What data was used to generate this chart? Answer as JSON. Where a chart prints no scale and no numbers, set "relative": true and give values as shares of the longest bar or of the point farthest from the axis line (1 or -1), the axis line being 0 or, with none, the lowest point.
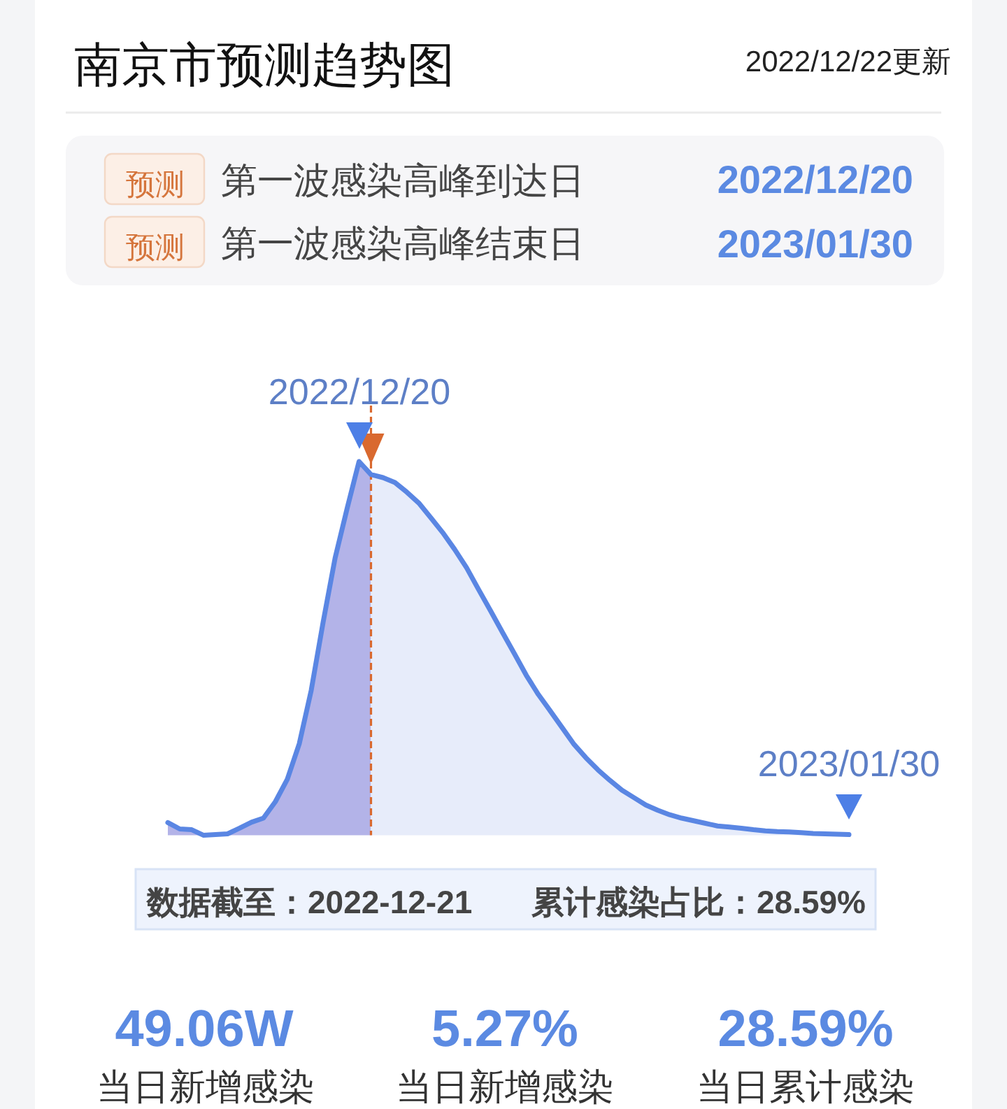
{
  "chart_data": {
    "type": "area",
    "title": "南京市预测趋势图",
    "subtitle": "2022/12/22更新",
    "relative": true,
    "line_style": "solid",
    "categories": [
      null,
      null,
      null,
      null,
      null,
      null,
      null,
      null,
      null,
      null,
      null,
      null,
      null,
      null,
      null,
      null,
      null,
      null,
      null,
      null,
      null,
      null,
      null,
      null,
      null,
      null,
      null,
      null,
      null,
      null,
      null,
      null,
      null,
      null,
      null,
      null,
      null,
      null,
      null,
      null,
      null,
      null,
      null,
      null,
      null,
      null,
      null,
      null,
      null,
      null,
      null,
      null,
      null,
      null,
      null,
      null,
      null,
      null
    ],
    "series": [
      {
        "color": "#b3b3e8",
        "values": [
          0.034,
          0.017,
          0.015,
          0,
          0.002,
          0.004,
          0.019,
          0.035,
          0.046,
          0.09,
          0.15,
          0.245,
          0.388,
          0.571,
          0.742,
          0.874,
          1,
          0.965,
          null,
          null,
          null,
          null,
          null,
          null,
          null,
          null,
          null,
          null,
          null,
          null,
          null,
          null,
          null,
          null,
          null,
          null,
          null,
          null,
          null,
          null,
          null,
          null,
          null,
          null,
          null,
          null,
          null,
          null,
          null,
          null,
          null,
          null,
          null,
          null,
          null,
          null,
          null,
          null
        ]
      },
      {
        "color": "#e7ecfa",
        "values": [
          null,
          null,
          null,
          null,
          null,
          null,
          null,
          null,
          null,
          null,
          null,
          null,
          null,
          null,
          null,
          null,
          null,
          0.965,
          0.957,
          0.944,
          0.918,
          0.889,
          0.85,
          0.81,
          0.765,
          0.716,
          0.658,
          0.601,
          0.543,
          0.486,
          0.428,
          0.377,
          0.333,
          0.288,
          0.243,
          0.207,
          0.175,
          0.147,
          0.121,
          0.101,
          0.081,
          0.067,
          0.055,
          0.046,
          0.039,
          0.032,
          0.025,
          0.022,
          0.019,
          0.015,
          0.012,
          0.01,
          0.009,
          0.007,
          0.005,
          0.004,
          0.003,
          0.002
        ]
      },
      {
        "type": "line",
        "color": "#5a86e3",
        "values": [
          0.034,
          0.017,
          0.015,
          0,
          0.002,
          0.004,
          0.019,
          0.035,
          0.046,
          0.09,
          0.15,
          0.245,
          0.388,
          0.571,
          0.742,
          0.874,
          1,
          0.965,
          0.957,
          0.944,
          0.918,
          0.889,
          0.85,
          0.81,
          0.765,
          0.716,
          0.658,
          0.601,
          0.543,
          0.486,
          0.428,
          0.377,
          0.333,
          0.288,
          0.243,
          0.207,
          0.175,
          0.147,
          0.121,
          0.101,
          0.081,
          0.067,
          0.055,
          0.046,
          0.039,
          0.032,
          0.025,
          0.022,
          0.019,
          0.015,
          0.012,
          0.01,
          0.009,
          0.007,
          0.005,
          0.004,
          0.003,
          0.002
        ]
      }
    ],
    "annotations": [
      "2022/12/20",
      "2023/01/30",
      "预测",
      "第一波感染高峰到达日",
      "2022/12/20",
      "预测",
      "第一波感染高峰结束日",
      "2023/01/30",
      "数据截至：2022-12-21",
      "累计感染占比：28.59%",
      "49.06W",
      "当日新增感染",
      "5.27%",
      "当日新增感染",
      "28.59%",
      "当日累计感染"
    ]
  }
}
